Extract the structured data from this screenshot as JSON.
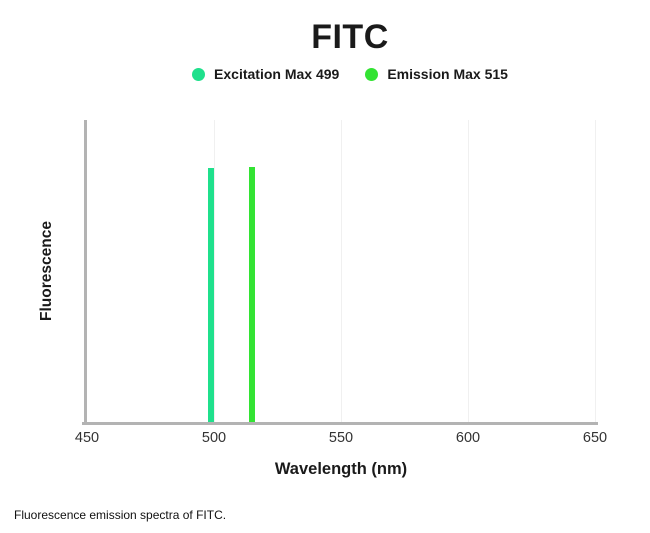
{
  "title": "FITC",
  "caption": "Fluorescence emission spectra of FITC.",
  "colors": {
    "axis": "#b3b3b3",
    "gridline": "#f0f0f0",
    "text": "#1a1a1a",
    "tick_text": "#333333",
    "excitation": "#1fe08c",
    "emission": "#33e333"
  },
  "chart_data": {
    "type": "bar",
    "title": "FITC",
    "xlabel": "Wavelength (nm)",
    "ylabel": "Fluorescence",
    "xlim": [
      450,
      650
    ],
    "xticks": [
      450,
      500,
      550,
      600,
      650
    ],
    "grid": true,
    "legend_position": "top",
    "series": [
      {
        "key": "excitation",
        "name": "Excitation Max 499",
        "peak_wavelength_nm": 499,
        "bar_height_fraction": 0.84,
        "color": "#1fe08c"
      },
      {
        "key": "emission",
        "name": "Emission Max 515",
        "peak_wavelength_nm": 515,
        "bar_height_fraction": 0.845,
        "color": "#33e333"
      }
    ]
  }
}
